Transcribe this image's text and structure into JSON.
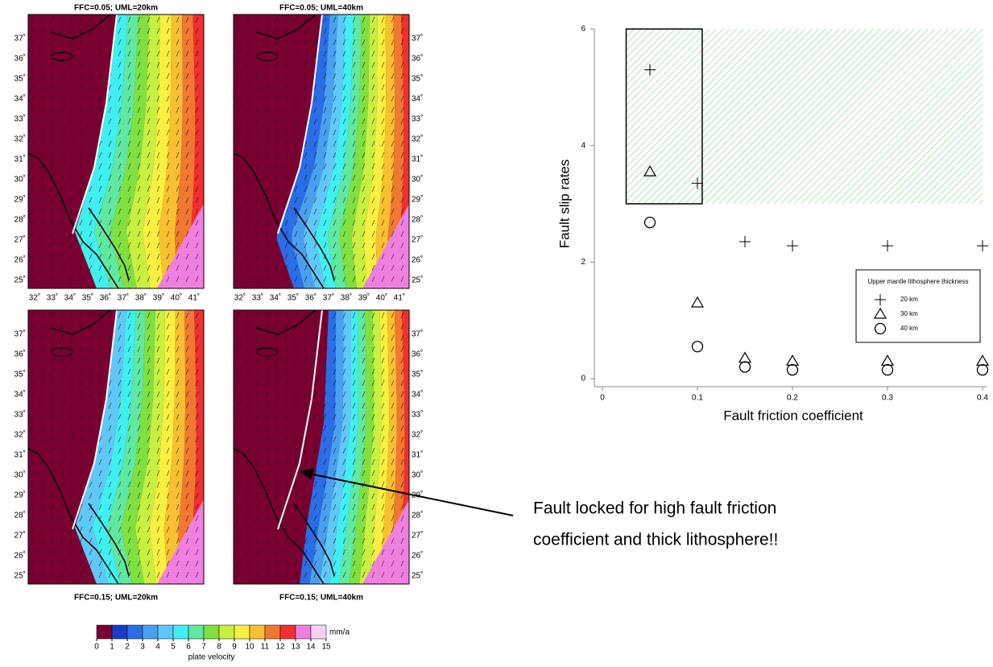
{
  "maps": [
    {
      "title": "FFC=0.05; UML=20km"
    },
    {
      "title": "FFC=0.05; UML=40km"
    },
    {
      "title": "FFC=0.15; UML=20km"
    },
    {
      "title": "FFC=0.15; UML=40km"
    }
  ],
  "lat_labels": [
    "37˚",
    "36˚",
    "35˚",
    "34˚",
    "33˚",
    "32˚",
    "31˚",
    "30˚",
    "29˚",
    "28˚",
    "27˚",
    "26˚",
    "25˚"
  ],
  "lon_labels": [
    "32˚",
    "33˚",
    "34˚",
    "35˚",
    "36˚",
    "37˚",
    "38˚",
    "39˚",
    "40˚",
    "41˚"
  ],
  "colorbar": {
    "ticks": [
      0,
      1,
      2,
      3,
      4,
      5,
      6,
      7,
      8,
      9,
      10,
      11,
      12,
      13,
      14,
      15
    ],
    "colors": [
      "#7a0032",
      "#1a3cc8",
      "#2a6ee6",
      "#4aa0f0",
      "#60c8f8",
      "#40f0f0",
      "#60e8a0",
      "#80e040",
      "#c8f040",
      "#f8f040",
      "#f8c030",
      "#f07830",
      "#f03030",
      "#f080e0",
      "#f8d0f0"
    ],
    "unit": "mm/a",
    "label": "plate velocity"
  },
  "chart_data": {
    "type": "scatter",
    "xlabel": "Fault friction coefficient",
    "ylabel": "Fault slip rates",
    "x": [
      0.05,
      0.1,
      0.15,
      0.2,
      0.3,
      0.4
    ],
    "series": [
      {
        "name": "20 km",
        "color": "#000000",
        "marker": "plus",
        "values": [
          5.3,
          3.35,
          2.35,
          2.28,
          2.28,
          2.28
        ]
      },
      {
        "name": "30 km",
        "color": "#000000",
        "marker": "triangle",
        "values": [
          3.55,
          1.3,
          0.35,
          0.3,
          0.3,
          0.3
        ]
      },
      {
        "name": "40 km",
        "color": "#000000",
        "marker": "circle",
        "values": [
          2.68,
          0.55,
          0.2,
          0.15,
          0.15,
          0.15
        ]
      }
    ],
    "legend_title": "Upper mantle lithosphere thickness",
    "xlim": [
      0,
      0.4
    ],
    "ylim": [
      0,
      6
    ],
    "xticks": [
      0,
      0.1,
      0.2,
      0.3,
      0.4
    ],
    "yticks": [
      0,
      2,
      4,
      6
    ],
    "shaded_region": {
      "x": [
        0.025,
        0.4
      ],
      "y": [
        3,
        6
      ],
      "color": "#7cd67c"
    },
    "box": {
      "x": [
        0.025,
        0.105
      ],
      "y": [
        3,
        6
      ]
    }
  },
  "annotation": [
    "Fault locked for high fault friction",
    "coefficient and thick lithosphere!!"
  ]
}
